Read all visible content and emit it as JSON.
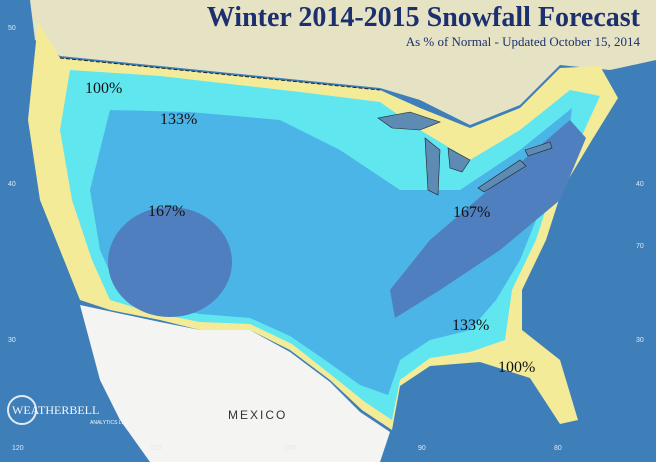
{
  "header": {
    "title": "Winter 2014-2015 Snowfall Forecast",
    "subtitle": "As % of Normal   -  Updated October 15, 2014"
  },
  "zone_labels": [
    "100%",
    "133%",
    "167%",
    "167%",
    "133%",
    "100%"
  ],
  "places": {
    "mexico": "MEXICO"
  },
  "logo": {
    "name": "WEATHERBELL",
    "sub": "ANALYTICS LLC"
  },
  "graticule": {
    "left": [
      "50",
      "40",
      "30"
    ],
    "right": [
      "40",
      "70",
      "30"
    ],
    "bottom": [
      "120",
      "110",
      "100",
      "90",
      "80"
    ]
  }
}
